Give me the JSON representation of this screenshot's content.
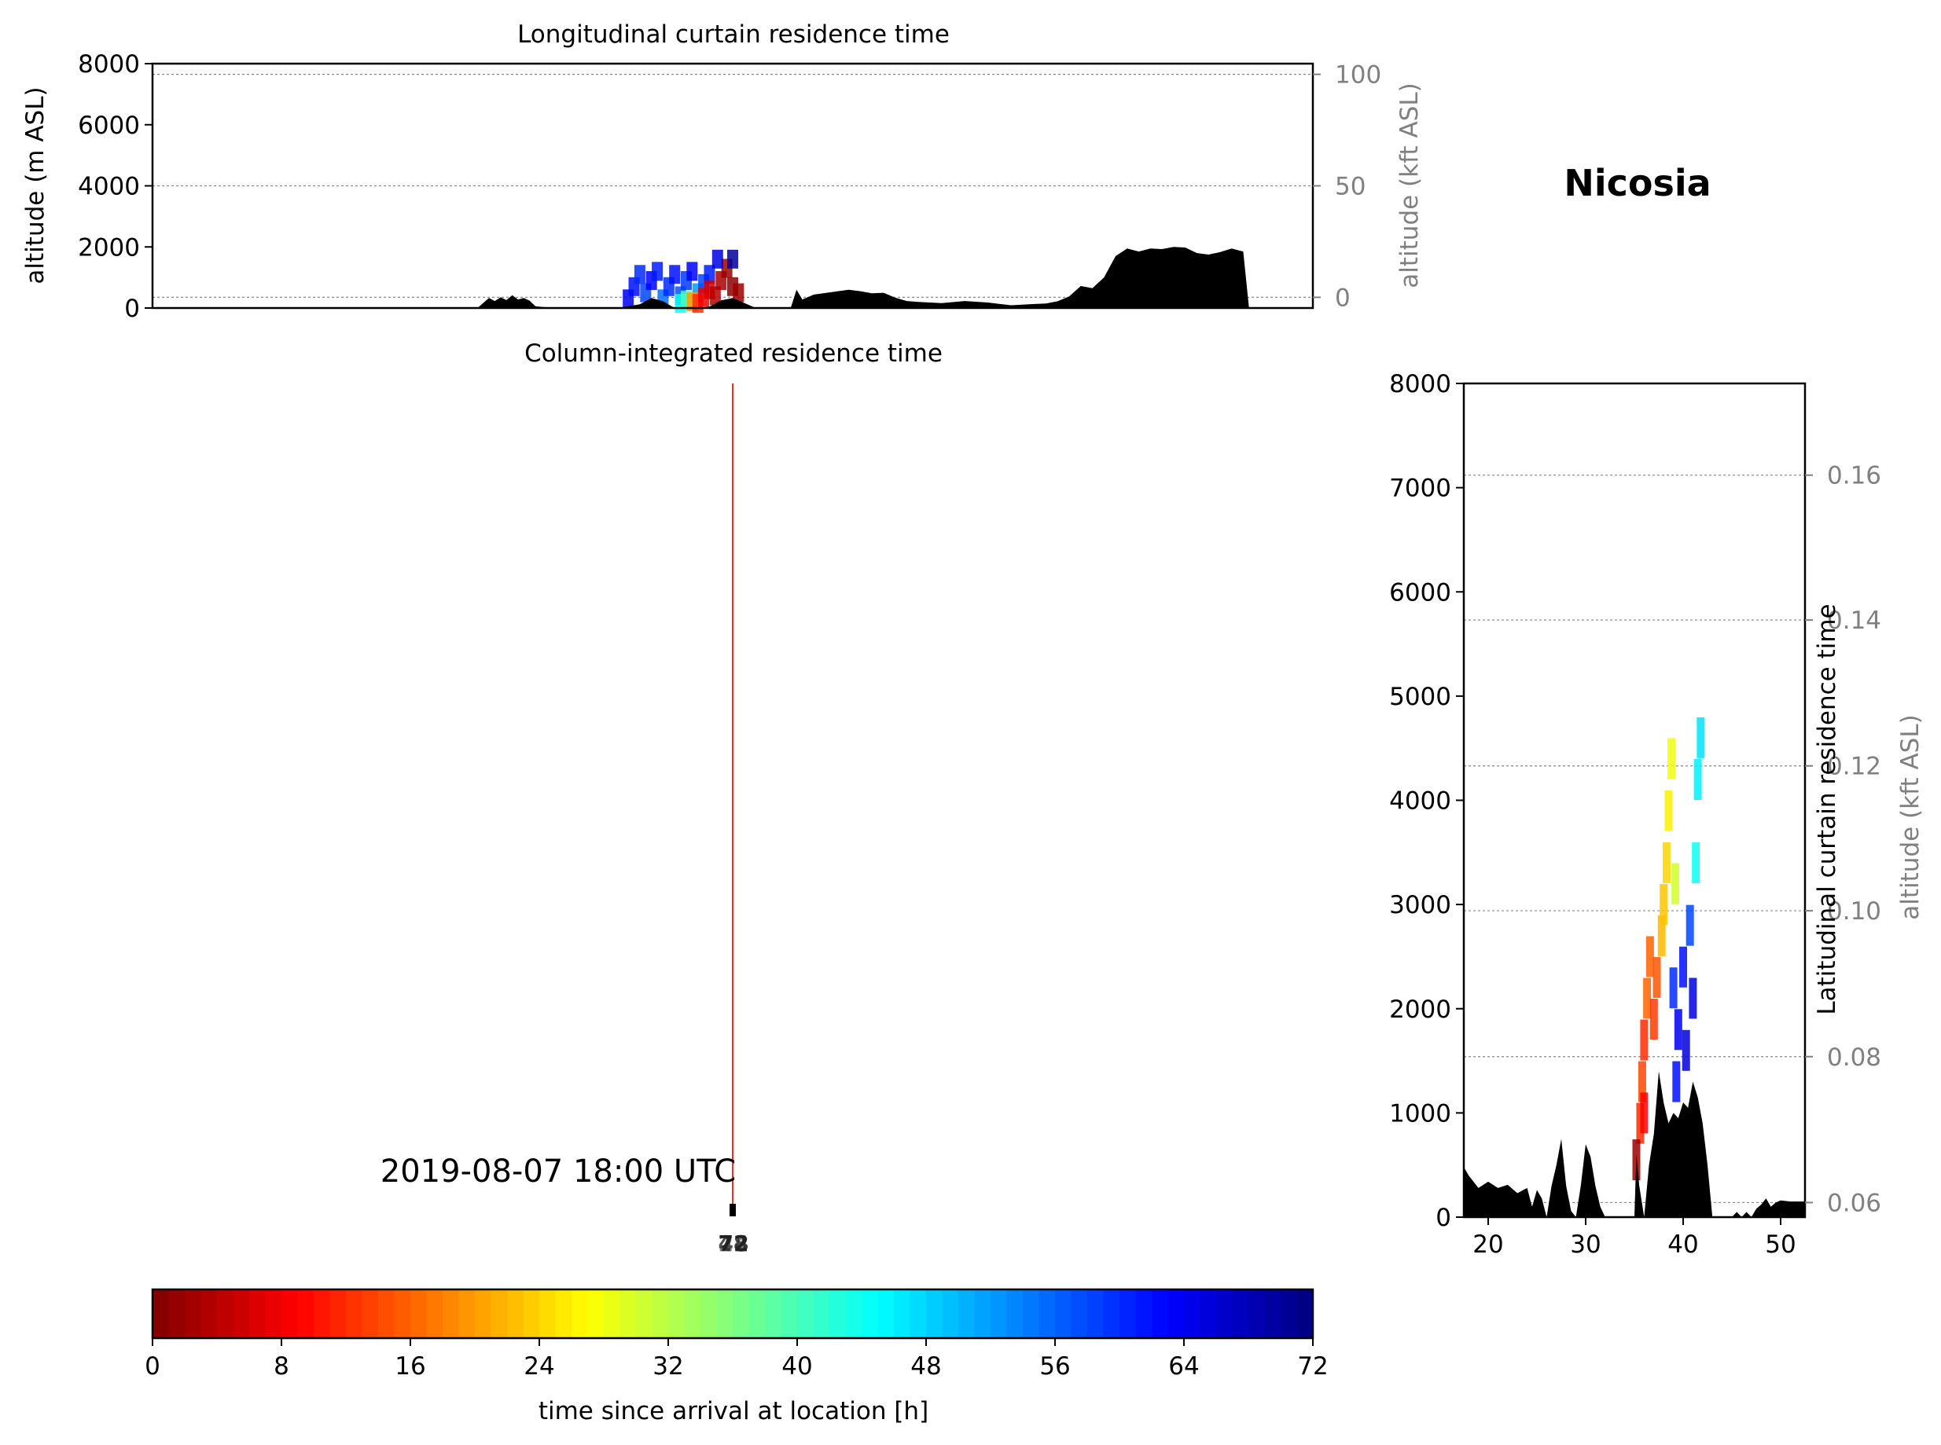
{
  "location_name": "Nicosia",
  "timestamp": "2019-08-07 18:00 UTC",
  "colors": {
    "terrain": "#000000",
    "gridline": "#888888",
    "secondary_axis_text": "#808080",
    "trajectory": "#e8332c"
  },
  "chart_data": [
    {
      "id": "longitudinal",
      "type": "area",
      "title": "Longitudinal curtain residence time",
      "ylabel": "altitude (m ASL)",
      "ylim": [
        0,
        8000
      ],
      "yticks": [
        0,
        2000,
        4000,
        6000,
        8000
      ],
      "y2label": "altitude (kft ASL)",
      "y2ticks": [
        {
          "label": "0",
          "at_m": 350
        },
        {
          "label": "50",
          "at_m": 4000
        },
        {
          "label": "100",
          "at_m": 7650
        }
      ],
      "x_range": [
        0,
        1
      ],
      "terrain": {
        "x": [
          0.0,
          0.28,
          0.29,
          0.295,
          0.3,
          0.305,
          0.31,
          0.315,
          0.32,
          0.325,
          0.33,
          0.345,
          0.4,
          0.41,
          0.42,
          0.43,
          0.44,
          0.45,
          0.46,
          0.47,
          0.48,
          0.49,
          0.5,
          0.52,
          0.55,
          0.555,
          0.56,
          0.57,
          0.6,
          0.61,
          0.62,
          0.63,
          0.64,
          0.65,
          0.66,
          0.68,
          0.7,
          0.72,
          0.74,
          0.76,
          0.77,
          0.78,
          0.79,
          0.8,
          0.81,
          0.82,
          0.83,
          0.84,
          0.85,
          0.86,
          0.87,
          0.88,
          0.89,
          0.9,
          0.91,
          0.92,
          0.93,
          0.94,
          0.945,
          1.0
        ],
        "y": [
          0,
          0,
          330,
          230,
          350,
          260,
          420,
          280,
          330,
          240,
          60,
          0,
          0,
          60,
          120,
          330,
          220,
          0,
          0,
          0,
          50,
          250,
          330,
          0,
          0,
          600,
          280,
          440,
          600,
          550,
          480,
          500,
          340,
          230,
          200,
          160,
          230,
          180,
          90,
          130,
          150,
          220,
          380,
          720,
          650,
          1000,
          1700,
          1950,
          1850,
          1950,
          1930,
          2000,
          1980,
          1800,
          1750,
          1830,
          1950,
          1850,
          0,
          0
        ]
      },
      "series": [
        {
          "name": "",
          "points": [
            {
              "x": 0.41,
              "y": 300,
              "t": 64
            },
            {
              "x": 0.415,
              "y": 700,
              "t": 62
            },
            {
              "x": 0.42,
              "y": 1100,
              "t": 60
            },
            {
              "x": 0.425,
              "y": 500,
              "t": 58
            },
            {
              "x": 0.43,
              "y": 900,
              "t": 63
            },
            {
              "x": 0.435,
              "y": 1200,
              "t": 61
            },
            {
              "x": 0.44,
              "y": 300,
              "t": 55
            },
            {
              "x": 0.445,
              "y": 700,
              "t": 60
            },
            {
              "x": 0.45,
              "y": 1100,
              "t": 62
            },
            {
              "x": 0.455,
              "y": 400,
              "t": 57
            },
            {
              "x": 0.46,
              "y": 900,
              "t": 59
            },
            {
              "x": 0.465,
              "y": 1200,
              "t": 63
            },
            {
              "x": 0.47,
              "y": 500,
              "t": 52
            },
            {
              "x": 0.475,
              "y": 800,
              "t": 58
            },
            {
              "x": 0.48,
              "y": 1100,
              "t": 61
            },
            {
              "x": 0.455,
              "y": 150,
              "t": 44
            },
            {
              "x": 0.46,
              "y": 250,
              "t": 40
            },
            {
              "x": 0.465,
              "y": 200,
              "t": 20
            },
            {
              "x": 0.47,
              "y": 150,
              "t": 12
            },
            {
              "x": 0.475,
              "y": 350,
              "t": 8
            },
            {
              "x": 0.48,
              "y": 600,
              "t": 6
            },
            {
              "x": 0.485,
              "y": 400,
              "t": 4
            },
            {
              "x": 0.49,
              "y": 900,
              "t": 3
            },
            {
              "x": 0.495,
              "y": 1300,
              "t": 2
            },
            {
              "x": 0.5,
              "y": 700,
              "t": 1
            },
            {
              "x": 0.505,
              "y": 500,
              "t": 2
            },
            {
              "x": 0.487,
              "y": 1600,
              "t": 65
            },
            {
              "x": 0.5,
              "y": 1600,
              "t": 70
            }
          ]
        }
      ]
    },
    {
      "id": "column",
      "type": "line",
      "title": "Column-integrated residence time",
      "annotations": [
        "2019-08-07 18:00 UTC",
        "72",
        "48",
        "24"
      ],
      "series": [
        {
          "name": "",
          "line_x": 0.5,
          "y_from": 0.0,
          "y_to": 0.985
        }
      ]
    },
    {
      "id": "latitudinal",
      "type": "area",
      "title": "Latitudinal curtain residence time",
      "ylabel": "",
      "ylim": [
        0,
        8000
      ],
      "yticks": [
        0,
        1000,
        2000,
        3000,
        4000,
        5000,
        6000,
        7000,
        8000
      ],
      "xlim": [
        17.5,
        52.5
      ],
      "xticks": [
        20,
        30,
        40,
        50
      ],
      "y2label": "altitude (kft ASL)",
      "y2ticks": [
        {
          "label": "0.06",
          "at_m": 140
        },
        {
          "label": "0.08",
          "at_m": 1540
        },
        {
          "label": "0.10",
          "at_m": 2940
        },
        {
          "label": "0.12",
          "at_m": 4330
        },
        {
          "label": "0.14",
          "at_m": 5730
        },
        {
          "label": "0.16",
          "at_m": 7120
        }
      ],
      "terrain": {
        "x": [
          17.5,
          18.0,
          19.0,
          20.0,
          21.0,
          22.0,
          23.0,
          24.0,
          24.5,
          25.0,
          25.5,
          26.0,
          26.5,
          27.0,
          27.5,
          28.0,
          28.5,
          29.0,
          29.5,
          30.0,
          30.5,
          31.0,
          31.5,
          32.0,
          34.5,
          35.0,
          35.2,
          35.5,
          36.0,
          36.5,
          37.0,
          37.5,
          38.0,
          38.5,
          39.0,
          39.5,
          40.0,
          40.5,
          41.0,
          41.5,
          42.0,
          42.5,
          43.0,
          45.0,
          45.5,
          46.0,
          46.5,
          47.0,
          47.5,
          48.0,
          48.5,
          49.0,
          49.5,
          50.0,
          51.0,
          52.5
        ],
        "y": [
          480,
          400,
          280,
          340,
          280,
          310,
          230,
          280,
          100,
          260,
          180,
          0,
          300,
          500,
          750,
          300,
          60,
          0,
          300,
          700,
          580,
          300,
          100,
          0,
          0,
          0,
          600,
          300,
          0,
          500,
          800,
          1400,
          1100,
          900,
          1000,
          950,
          1100,
          1050,
          1300,
          1150,
          900,
          500,
          0,
          0,
          50,
          0,
          50,
          0,
          80,
          120,
          180,
          100,
          140,
          160,
          150,
          150
        ]
      },
      "series": [
        {
          "name": "",
          "points": [
            {
              "x": 35.6,
              "y": 900,
              "t": 12
            },
            {
              "x": 35.8,
              "y": 1300,
              "t": 14
            },
            {
              "x": 36.0,
              "y": 1700,
              "t": 12
            },
            {
              "x": 36.3,
              "y": 2100,
              "t": 16
            },
            {
              "x": 36.6,
              "y": 2500,
              "t": 16
            },
            {
              "x": 37.0,
              "y": 1900,
              "t": 13
            },
            {
              "x": 37.3,
              "y": 2300,
              "t": 15
            },
            {
              "x": 36.0,
              "y": 1000,
              "t": 9
            },
            {
              "x": 37.8,
              "y": 2700,
              "t": 22
            },
            {
              "x": 38.0,
              "y": 3000,
              "t": 23
            },
            {
              "x": 38.3,
              "y": 3400,
              "t": 24
            },
            {
              "x": 38.5,
              "y": 3900,
              "t": 26
            },
            {
              "x": 38.8,
              "y": 4400,
              "t": 28
            },
            {
              "x": 39.2,
              "y": 3200,
              "t": 30
            },
            {
              "x": 39.0,
              "y": 2200,
              "t": 60
            },
            {
              "x": 39.5,
              "y": 1800,
              "t": 64
            },
            {
              "x": 40.0,
              "y": 2400,
              "t": 62
            },
            {
              "x": 40.3,
              "y": 1600,
              "t": 66
            },
            {
              "x": 40.7,
              "y": 2800,
              "t": 58
            },
            {
              "x": 41.0,
              "y": 2100,
              "t": 65
            },
            {
              "x": 39.3,
              "y": 1300,
              "t": 62
            },
            {
              "x": 41.3,
              "y": 3400,
              "t": 44
            },
            {
              "x": 41.5,
              "y": 4200,
              "t": 46
            },
            {
              "x": 41.8,
              "y": 4600,
              "t": 47
            },
            {
              "x": 35.2,
              "y": 550,
              "t": 2
            }
          ]
        }
      ]
    },
    {
      "id": "colorbar",
      "type": "heatmap",
      "xlabel": "time since arrival at location [h]",
      "xlim": [
        0,
        72
      ],
      "xticks": [
        0,
        8,
        16,
        24,
        32,
        40,
        48,
        56,
        64,
        72
      ],
      "colormap": "jet",
      "levels": 72
    }
  ]
}
